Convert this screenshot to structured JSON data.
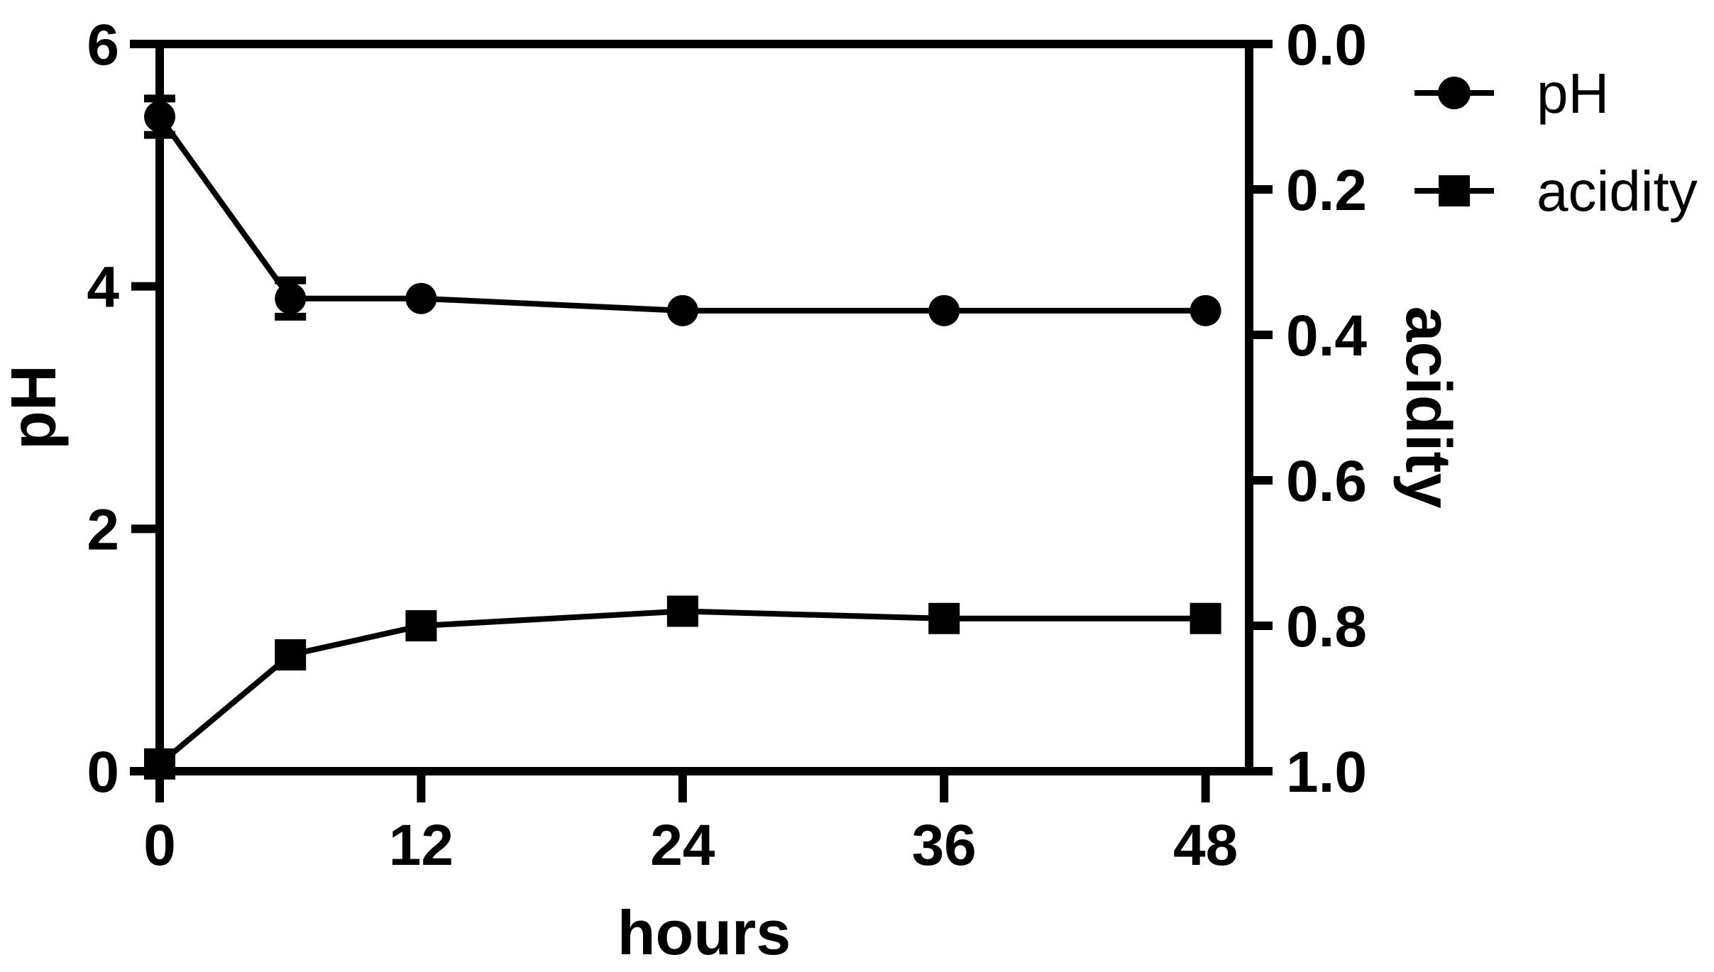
{
  "figure": {
    "background": "#ffffff",
    "foreground": "#000000"
  },
  "chart_data": {
    "type": "line",
    "title": "",
    "xlabel": "hours",
    "x": [
      0,
      6,
      12,
      24,
      36,
      48
    ],
    "x_ticks": [
      "0",
      "12",
      "24",
      "36",
      "48"
    ],
    "x_tick_values": [
      0,
      12,
      24,
      36,
      48
    ],
    "xlim": [
      0,
      50
    ],
    "grid": false,
    "axes": {
      "left": {
        "label": "pH",
        "ticks": [
          "6",
          "4",
          "2",
          "0"
        ],
        "tick_values": [
          6,
          4,
          2,
          0
        ],
        "lim": [
          0,
          6
        ],
        "reversed": false
      },
      "right": {
        "label": "acidity",
        "ticks": [
          "0.0",
          "0.2",
          "0.4",
          "0.6",
          "0.8",
          "1.0"
        ],
        "tick_values": [
          0.0,
          0.2,
          0.4,
          0.6,
          0.8,
          1.0
        ],
        "lim": [
          0.0,
          1.0
        ],
        "reversed": true
      }
    },
    "series": [
      {
        "name": "pH",
        "axis": "left",
        "marker": "circle",
        "color": "#000000",
        "values": [
          5.4,
          3.9,
          3.9,
          3.8,
          3.8,
          3.8
        ],
        "errors": [
          0.15,
          0.15,
          0,
          0,
          0,
          0
        ]
      },
      {
        "name": "acidity",
        "axis": "right",
        "marker": "square",
        "color": "#000000",
        "values": [
          0.99,
          0.84,
          0.8,
          0.78,
          0.79,
          0.79
        ],
        "errors": [
          0,
          0,
          0,
          0,
          0,
          0
        ]
      }
    ],
    "legend": {
      "position": "top-right-outside",
      "entries": [
        {
          "label": "pH",
          "marker": "circle"
        },
        {
          "label": "acidity",
          "marker": "square"
        }
      ]
    }
  }
}
